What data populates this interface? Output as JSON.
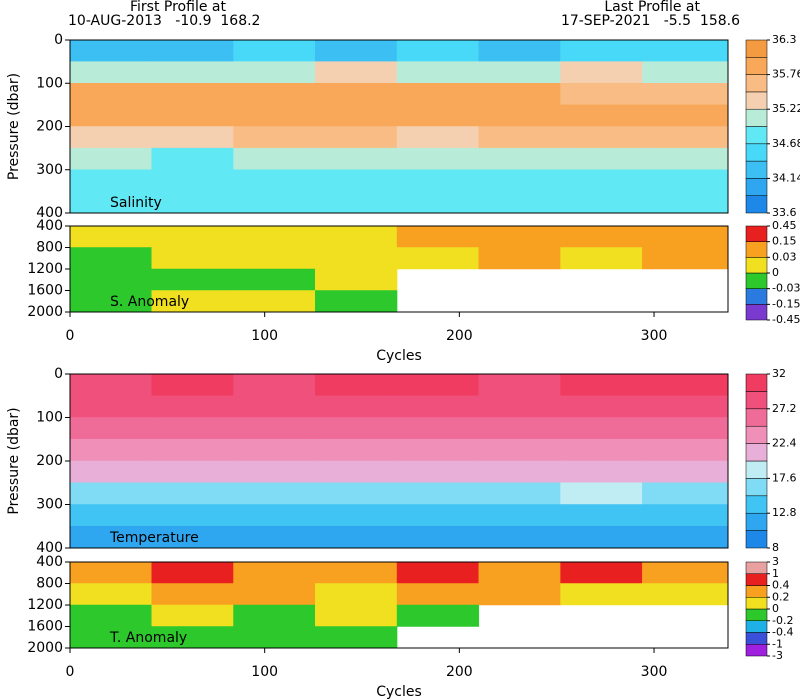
{
  "header": {
    "first_label": "First Profile at",
    "first_info": "10-AUG-2013   -10.9  168.2",
    "last_label": "Last Profile at",
    "last_info": "17-SEP-2021   -5.5  158.6"
  },
  "chart_data": [
    {
      "type": "heatmap",
      "annotation": "Salinity",
      "ylabel": "Pressure (dbar)",
      "x": [
        0,
        42,
        84,
        126,
        168,
        210,
        252,
        294,
        338
      ],
      "y": [
        0,
        50,
        100,
        150,
        200,
        250,
        300,
        350,
        400
      ],
      "z": [
        [
          34.4,
          34.4,
          34.5,
          34.4,
          34.5,
          34.4,
          34.6,
          34.5
        ],
        [
          35.0,
          35.2,
          35.0,
          35.3,
          35.0,
          35.2,
          35.4,
          35.0
        ],
        [
          35.9,
          35.9,
          35.9,
          36.0,
          35.9,
          35.8,
          35.6,
          35.7
        ],
        [
          35.9,
          35.8,
          35.9,
          35.9,
          35.8,
          35.9,
          35.9,
          35.8
        ],
        [
          35.4,
          35.3,
          35.5,
          35.5,
          35.4,
          35.5,
          35.6,
          35.5
        ],
        [
          35.0,
          34.9,
          35.0,
          35.1,
          35.0,
          35.1,
          35.1,
          35.0
        ],
        [
          34.8,
          34.8,
          34.8,
          34.9,
          34.8,
          34.8,
          34.9,
          34.8
        ],
        [
          34.7,
          34.7,
          34.7,
          34.7,
          34.7,
          34.7,
          34.7,
          34.7
        ]
      ],
      "xlim": [
        0,
        338
      ],
      "ylim": [
        400,
        0
      ],
      "yticks": [
        0,
        100,
        200,
        300,
        400
      ],
      "colorbar": {
        "ticks": [
          33.6,
          34.14,
          34.68,
          35.22,
          35.76,
          36.3
        ],
        "colors": [
          "#1e88e8",
          "#2ea6f0",
          "#3cc0f4",
          "#48d8f8",
          "#60e8f4",
          "#b8ecd8",
          "#f4d0b0",
          "#f8bc84",
          "#f8a858",
          "#f49a40"
        ]
      }
    },
    {
      "type": "heatmap",
      "annotation": "S. Anomaly",
      "xlabel": "Cycles",
      "x": [
        0,
        42,
        84,
        126,
        168,
        210,
        252,
        294,
        338
      ],
      "y": [
        400,
        800,
        1200,
        1600,
        2000
      ],
      "z": [
        [
          0.01,
          0.02,
          0.02,
          0.02,
          0.04,
          0.05,
          0.05,
          0.04
        ],
        [
          -0.01,
          0.01,
          0.01,
          0.01,
          0.02,
          0.03,
          0.02,
          0.03
        ],
        [
          -0.02,
          -0.01,
          -0.01,
          0.01,
          null,
          null,
          null,
          null
        ],
        [
          -0.02,
          0.01,
          0.01,
          -0.01,
          null,
          null,
          null,
          null
        ]
      ],
      "xlim": [
        0,
        338
      ],
      "ylim": [
        2000,
        400
      ],
      "xticks": [
        0,
        100,
        200,
        300
      ],
      "yticks": [
        400,
        800,
        1200,
        1600,
        2000
      ],
      "colorbar": {
        "ticks": [
          -0.45,
          -0.15,
          -0.03,
          0,
          0.03,
          0.15,
          0.45
        ],
        "colors": [
          "#7a3ad0",
          "#2a7ae0",
          "#2cc82c",
          "#f0e020",
          "#f8a020",
          "#e82020"
        ]
      }
    },
    {
      "type": "heatmap",
      "annotation": "Temperature",
      "ylabel": "Pressure (dbar)",
      "x": [
        0,
        42,
        84,
        126,
        168,
        210,
        252,
        294,
        338
      ],
      "y": [
        0,
        50,
        100,
        150,
        200,
        250,
        300,
        350,
        400
      ],
      "z": [
        [
          29.5,
          29.6,
          29.5,
          29.7,
          29.6,
          29.5,
          29.8,
          29.6
        ],
        [
          28.5,
          28.4,
          28.6,
          28.5,
          28.4,
          28.6,
          28.8,
          28.5
        ],
        [
          26.5,
          26.2,
          26.6,
          26.4,
          26.3,
          26.5,
          27.0,
          26.4
        ],
        [
          23.5,
          23.2,
          23.8,
          23.5,
          23.3,
          23.6,
          24.5,
          23.4
        ],
        [
          20.5,
          20.2,
          20.8,
          20.6,
          20.3,
          20.7,
          21.5,
          20.4
        ],
        [
          17.0,
          16.8,
          17.2,
          17.0,
          16.9,
          17.1,
          18.0,
          17.0
        ],
        [
          14.0,
          13.8,
          14.2,
          14.0,
          13.9,
          14.1,
          14.8,
          14.0
        ],
        [
          12.0,
          11.8,
          12.1,
          12.0,
          11.9,
          12.0,
          12.5,
          12.0
        ]
      ],
      "xlim": [
        0,
        338
      ],
      "ylim": [
        400,
        0
      ],
      "yticks": [
        0,
        100,
        200,
        300,
        400
      ],
      "colorbar": {
        "ticks": [
          8,
          12.8,
          17.6,
          22.4,
          27.2,
          32
        ],
        "colors": [
          "#1e88e8",
          "#2ea6f0",
          "#40c4f4",
          "#80dcf4",
          "#c0ecf4",
          "#e8b0d8",
          "#f090b8",
          "#f06c98",
          "#f0507c",
          "#f03c60"
        ]
      }
    },
    {
      "type": "heatmap",
      "annotation": "T. Anomaly",
      "xlabel": "Cycles",
      "x": [
        0,
        42,
        84,
        126,
        168,
        210,
        252,
        294,
        338
      ],
      "y": [
        400,
        800,
        1200,
        1600,
        2000
      ],
      "z": [
        [
          0.3,
          0.5,
          0.3,
          0.2,
          0.4,
          0.3,
          0.5,
          0.3
        ],
        [
          0.1,
          0.3,
          0.2,
          0.1,
          0.2,
          0.2,
          0.1,
          0.1
        ],
        [
          -0.1,
          0.1,
          -0.1,
          0.1,
          -0.1,
          null,
          null,
          null
        ],
        [
          -0.1,
          -0.1,
          -0.1,
          -0.1,
          null,
          null,
          null,
          null
        ]
      ],
      "xlim": [
        0,
        338
      ],
      "ylim": [
        2000,
        400
      ],
      "xticks": [
        0,
        100,
        200,
        300
      ],
      "yticks": [
        400,
        800,
        1200,
        1600,
        2000
      ],
      "colorbar": {
        "ticks": [
          -3,
          -1,
          -0.4,
          -0.2,
          0,
          0.2,
          0.4,
          1,
          3
        ],
        "colors": [
          "#a020e0",
          "#3a50d8",
          "#20b0e8",
          "#2cc82c",
          "#f0e020",
          "#f8a020",
          "#e82020",
          "#e8a0a0"
        ]
      }
    }
  ]
}
